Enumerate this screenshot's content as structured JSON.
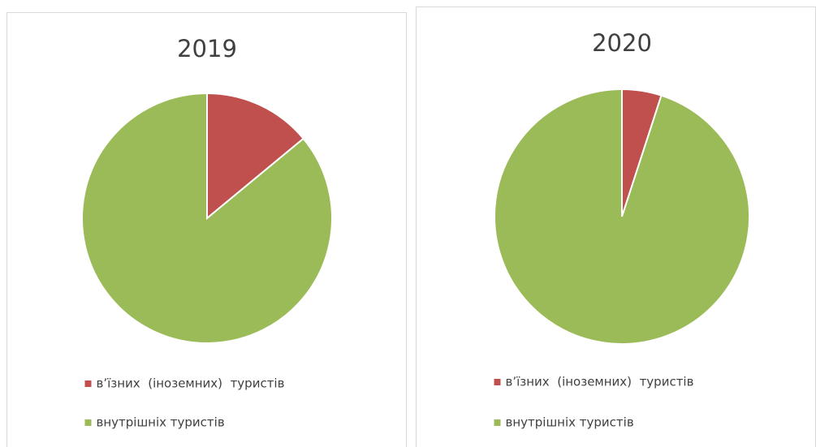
{
  "chart_data": [
    {
      "type": "pie",
      "title": "2019",
      "categories": [
        "в’їзних  (іноземних)  туристів",
        "внутрішніх туристів"
      ],
      "values": [
        14,
        86
      ],
      "colors": [
        "#c0504d",
        "#9bbb59"
      ],
      "legend": "bottom"
    },
    {
      "type": "pie",
      "title": "2020",
      "categories": [
        "в’їзних  (іноземних)  туристів",
        "внутрішніх туристів"
      ],
      "values": [
        5,
        95
      ],
      "colors": [
        "#c0504d",
        "#9bbb59"
      ],
      "legend": "bottom"
    }
  ]
}
